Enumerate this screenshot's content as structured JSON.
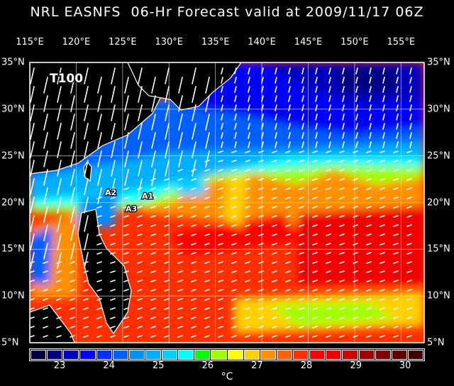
{
  "title": "NRL EASNFS  06-Hr Forecast valid at 2009/11/17 06Z",
  "lon_labels": [
    "115°E",
    "120°E",
    "125°E",
    "130°E",
    "135°E",
    "140°E",
    "145°E",
    "150°E",
    "155°E"
  ],
  "lat_labels": [
    "35°N",
    "30°N",
    "25°N",
    "20°N",
    "15°N",
    "10°N",
    "5°N"
  ],
  "map": {
    "lon_range": [
      115,
      157.5
    ],
    "lat_range": [
      5,
      35
    ],
    "field": "sea surface temperature",
    "land_color": "#000000",
    "vectors": "wind arrows (white)",
    "annotations": [
      "T100",
      "A1",
      "A2",
      "A3"
    ]
  },
  "colorbar": {
    "colors": [
      "#000040",
      "#000080",
      "#0000c0",
      "#0000ff",
      "#0030ff",
      "#0060ff",
      "#0090ff",
      "#00b0ff",
      "#00d0ff",
      "#00ffff",
      "#00ff00",
      "#a0ff00",
      "#ffff00",
      "#ffd000",
      "#ff9000",
      "#ff6000",
      "#ff3000",
      "#ff0000",
      "#f00000",
      "#d00000",
      "#a00000",
      "#800000",
      "#600000",
      "#400000"
    ],
    "tick_labels": [
      "23",
      "24",
      "25",
      "26",
      "27",
      "28",
      "29",
      "30"
    ],
    "unit": "°C"
  }
}
